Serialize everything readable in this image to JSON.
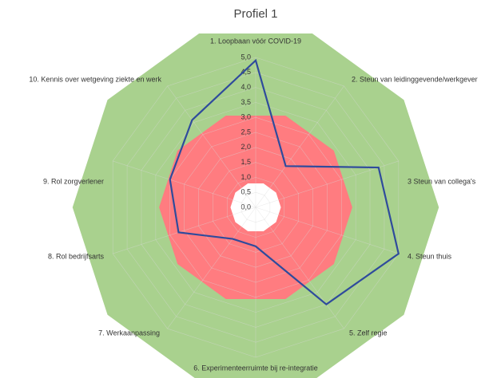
{
  "chart_data": {
    "type": "radar",
    "title": "Profiel 1",
    "categories": [
      "1.   Loopbaan vóór COVID-19",
      "2.   Steun van leidinggevende/werkgever",
      "3   Steun van collega's",
      "4.   Steun thuis",
      "5.   Zelf regie",
      "6.   Experimenteerruimte bij re-integratie",
      "7.   Werkaanpassing",
      "8.   Rol bedrijfsarts",
      "9.   Rol zorgverlener",
      "10.   Kennis over wetgeving ziekte en werk"
    ],
    "series": [
      {
        "color": "#2f4b9c",
        "values": [
          4.9,
          1.7,
          4.3,
          5.0,
          4.0,
          1.3,
          1.3,
          2.7,
          3.0,
          3.6
        ]
      }
    ],
    "ylim": [
      0,
      5
    ],
    "yticks": [
      {
        "value": 0,
        "label": "0,0"
      },
      {
        "value": 0.5,
        "label": "0,5"
      },
      {
        "value": 1,
        "label": "1,0"
      },
      {
        "value": 1.5,
        "label": "1,5"
      },
      {
        "value": 2,
        "label": "2,0"
      },
      {
        "value": 2.5,
        "label": "2,5"
      },
      {
        "value": 3,
        "label": "3,0"
      },
      {
        "value": 3.5,
        "label": "3,5"
      },
      {
        "value": 4,
        "label": "4,0"
      },
      {
        "value": 4.5,
        "label": "4,5"
      },
      {
        "value": 5,
        "label": "5,0"
      }
    ]
  }
}
